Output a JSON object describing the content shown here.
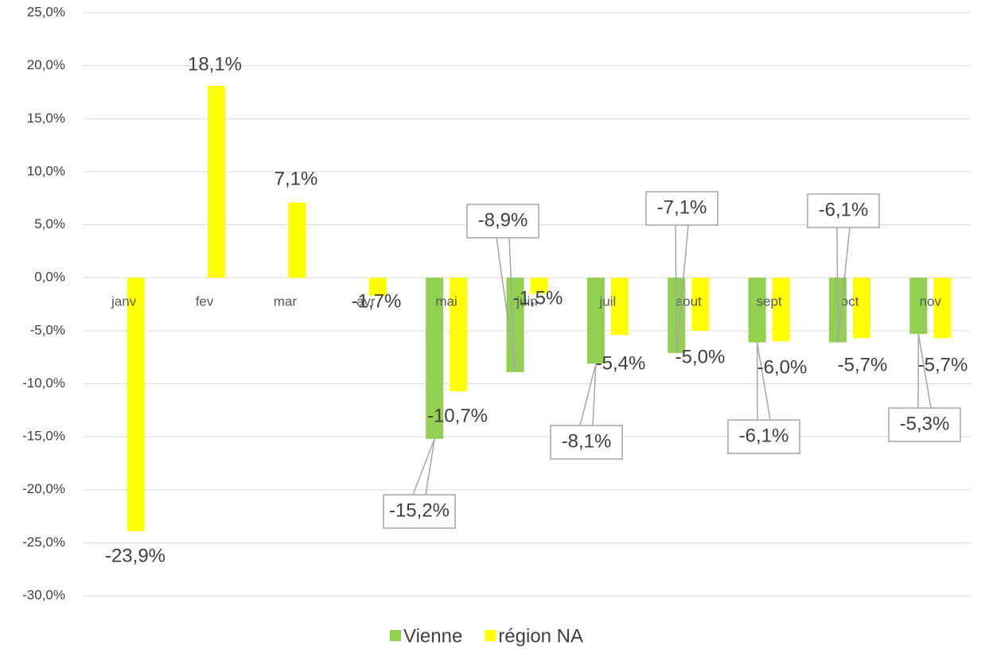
{
  "chart_data": {
    "type": "bar",
    "categories": [
      "janv",
      "fev",
      "mar",
      "avr",
      "mai",
      "juin",
      "juil",
      "aout",
      "sept",
      "oct",
      "nov"
    ],
    "series": [
      {
        "name": "Vienne",
        "color": "#92d050",
        "values": [
          null,
          null,
          null,
          null,
          -15.2,
          -8.9,
          -8.1,
          -7.1,
          -6.1,
          -6.1,
          -5.3
        ],
        "value_labels": [
          null,
          null,
          null,
          null,
          "-15,2%",
          "-8,9%",
          "-8,1%",
          "-7,1%",
          "-6,1%",
          "-6,1%",
          "-5,3%"
        ]
      },
      {
        "name": "région NA",
        "color": "#ffff00",
        "values": [
          -23.9,
          18.1,
          7.1,
          -1.7,
          -10.7,
          -1.5,
          -5.4,
          -5.0,
          -6.0,
          -5.7,
          -5.7
        ],
        "value_labels": [
          "-23,9%",
          "18,1%",
          "7,1%",
          "-1,7%",
          "-10,7%",
          "-1,5%",
          "-5,4%",
          "-5,0%",
          "-6,0%",
          "-5,7%",
          "-5,7%"
        ]
      }
    ],
    "ylim": [
      -30,
      25
    ],
    "yticks": [
      {
        "value": -30,
        "label": "-30,0%"
      },
      {
        "value": -25,
        "label": "-25,0%"
      },
      {
        "value": -20,
        "label": "-20,0%"
      },
      {
        "value": -15,
        "label": "-15,0%"
      },
      {
        "value": -10,
        "label": "-10,0%"
      },
      {
        "value": -5,
        "label": "-5,0%"
      },
      {
        "value": 0,
        "label": "0,0%"
      },
      {
        "value": 5,
        "label": "5,0%"
      },
      {
        "value": 10,
        "label": "10,0%"
      },
      {
        "value": 15,
        "label": "15,0%"
      },
      {
        "value": 20,
        "label": "20,0%"
      },
      {
        "value": 25,
        "label": "25,0%"
      }
    ],
    "grid": true,
    "legend": "bottom"
  }
}
